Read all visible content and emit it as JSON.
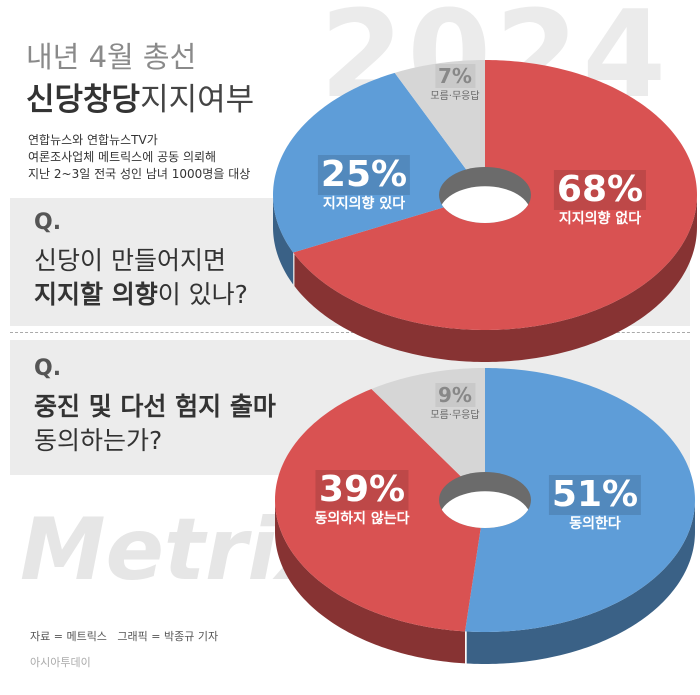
{
  "header": {
    "title_line1": "내년 4월 총선",
    "title_bold": "신당창당",
    "title_rest": "지지여부",
    "subtitle": [
      "연합뉴스와 연합뉴스TV가",
      "여론조사업체 메트릭스에 공동 의뢰해",
      "지난 2~3일 전국 성인 남녀 1000명을 대상"
    ],
    "year": "2024"
  },
  "questions": [
    {
      "mark": "Q.",
      "lines": [
        [
          {
            "text": "신당이 만들어지면",
            "bold": false
          }
        ],
        [
          {
            "text": "지지할 의향",
            "bold": true
          },
          {
            "text": "이 있나?",
            "bold": false
          }
        ]
      ]
    },
    {
      "mark": "Q.",
      "lines": [
        [
          {
            "text": "중진 및 다선 험지 출마",
            "bold": true
          }
        ],
        [
          {
            "text": "동의하는가?",
            "bold": false
          }
        ]
      ]
    }
  ],
  "watermark": "MetriX",
  "footer": {
    "source": "자료 = 메트릭스   그래픽 = 박종규 기자",
    "publisher": "아시아투데이"
  },
  "chart_data": [
    {
      "type": "pie",
      "categories": [
        "지지의향 없다",
        "지지의향 있다",
        "모름·무응답"
      ],
      "values": [
        68,
        25,
        7
      ],
      "value_labels": [
        "68%",
        "25%",
        "7%"
      ],
      "colors": [
        "#d95252",
        "#5e9dd8",
        "#d6d6d6"
      ]
    },
    {
      "type": "pie",
      "categories": [
        "동의한다",
        "동의하지 않는다",
        "모름·무응답"
      ],
      "values": [
        51,
        39,
        9
      ],
      "value_labels": [
        "51%",
        "39%",
        "9%"
      ],
      "colors": [
        "#5e9dd8",
        "#d95252",
        "#d6d6d6"
      ]
    }
  ]
}
